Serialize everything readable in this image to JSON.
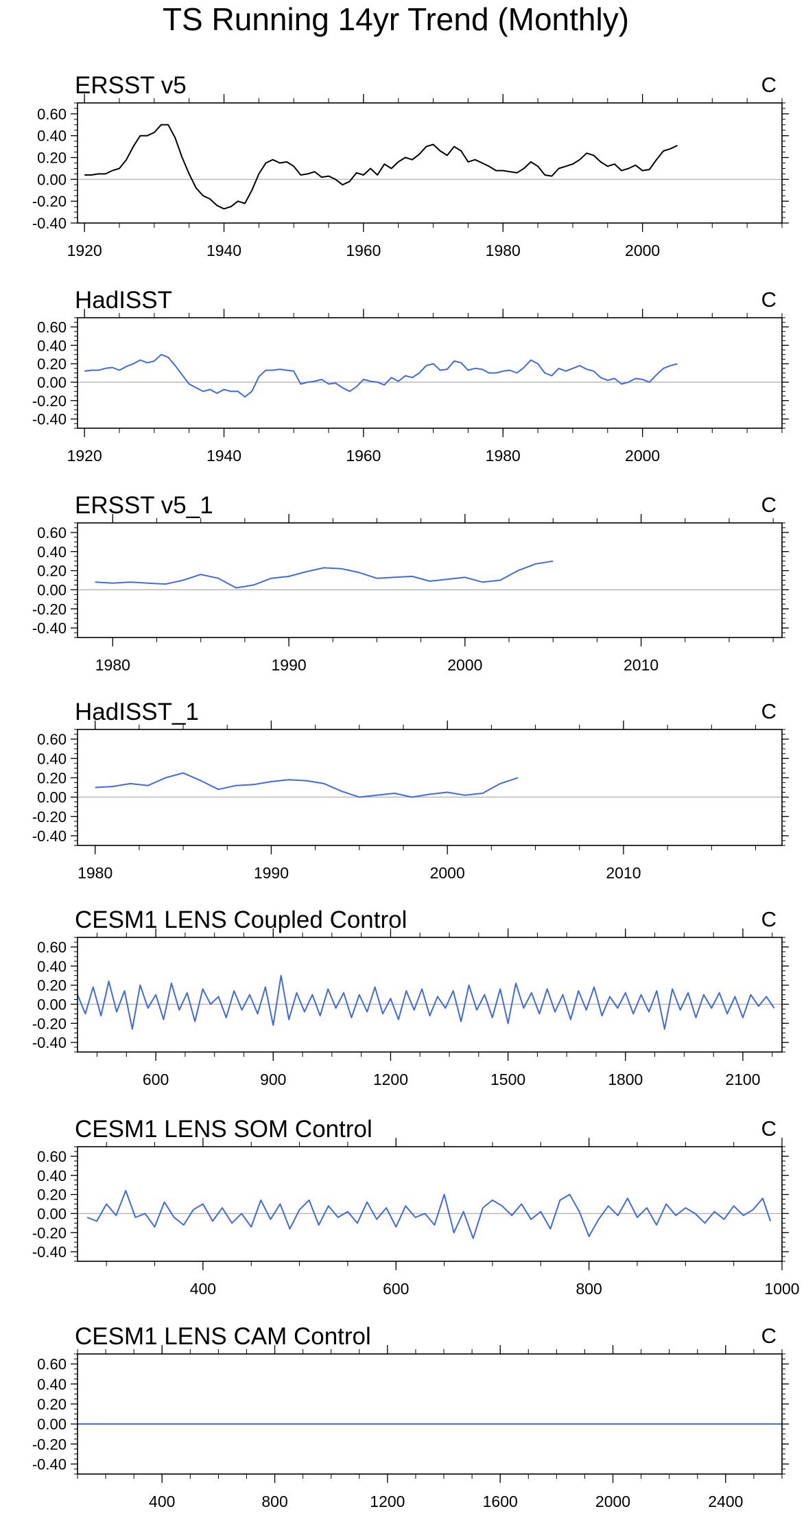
{
  "figure": {
    "title": "TS Running 14yr Trend (Monthly)"
  },
  "chart_data": [
    {
      "type": "line",
      "title": "ERSST v5",
      "units": "C",
      "xlim": [
        1919,
        2020
      ],
      "ylim": [
        -0.4,
        0.7
      ],
      "xticks": [
        1920,
        1940,
        1960,
        1980,
        2000
      ],
      "yticks": [
        -0.4,
        -0.2,
        0.0,
        0.2,
        0.4,
        0.6
      ],
      "ytick_labels": [
        "-0.40",
        "-0.20",
        "0.00",
        "0.20",
        "0.40",
        "0.60"
      ],
      "zero_line": true,
      "color": "#000000",
      "series": [
        {
          "x": [
            1920,
            1921,
            1922,
            1923,
            1924,
            1925,
            1926,
            1927,
            1928,
            1929,
            1930,
            1931,
            1932,
            1933,
            1934,
            1935,
            1936,
            1937,
            1938,
            1939,
            1940,
            1941,
            1942,
            1943,
            1944,
            1945,
            1946,
            1947,
            1948,
            1949,
            1950,
            1951,
            1952,
            1953,
            1954,
            1955,
            1956,
            1957,
            1958,
            1959,
            1960,
            1961,
            1962,
            1963,
            1964,
            1965,
            1966,
            1967,
            1968,
            1969,
            1970,
            1971,
            1972,
            1973,
            1974,
            1975,
            1976,
            1977,
            1978,
            1979,
            1980,
            1981,
            1982,
            1983,
            1984,
            1985,
            1986,
            1987,
            1988,
            1989,
            1990,
            1991,
            1992,
            1993,
            1994,
            1995,
            1996,
            1997,
            1998,
            1999,
            2000,
            2001,
            2002,
            2003,
            2004,
            2005
          ],
          "y": [
            0.04,
            0.04,
            0.05,
            0.05,
            0.08,
            0.1,
            0.18,
            0.3,
            0.4,
            0.4,
            0.43,
            0.5,
            0.5,
            0.38,
            0.2,
            0.05,
            -0.08,
            -0.15,
            -0.18,
            -0.24,
            -0.27,
            -0.25,
            -0.2,
            -0.22,
            -0.1,
            0.05,
            0.15,
            0.18,
            0.15,
            0.16,
            0.12,
            0.04,
            0.05,
            0.07,
            0.02,
            0.03,
            0.0,
            -0.05,
            -0.02,
            0.06,
            0.04,
            0.1,
            0.04,
            0.14,
            0.1,
            0.16,
            0.2,
            0.18,
            0.23,
            0.3,
            0.32,
            0.26,
            0.22,
            0.3,
            0.26,
            0.16,
            0.18,
            0.15,
            0.12,
            0.08,
            0.08,
            0.07,
            0.06,
            0.1,
            0.16,
            0.12,
            0.04,
            0.03,
            0.1,
            0.12,
            0.14,
            0.18,
            0.24,
            0.22,
            0.16,
            0.12,
            0.14,
            0.08,
            0.1,
            0.13,
            0.08,
            0.09,
            0.18,
            0.26,
            0.28,
            0.31
          ]
        }
      ]
    },
    {
      "type": "line",
      "title": "HadISST",
      "units": "C",
      "xlim": [
        1919,
        2020
      ],
      "ylim": [
        -0.5,
        0.7
      ],
      "xticks": [
        1920,
        1940,
        1960,
        1980,
        2000
      ],
      "yticks": [
        -0.4,
        -0.2,
        0.0,
        0.2,
        0.4,
        0.6
      ],
      "ytick_labels": [
        "-0.40",
        "-0.20",
        "0.00",
        "0.20",
        "0.40",
        "0.60"
      ],
      "zero_line": true,
      "color": "#4169e1",
      "series": [
        {
          "x": [
            1920,
            1921,
            1922,
            1923,
            1924,
            1925,
            1926,
            1927,
            1928,
            1929,
            1930,
            1931,
            1932,
            1933,
            1934,
            1935,
            1936,
            1937,
            1938,
            1939,
            1940,
            1941,
            1942,
            1943,
            1944,
            1945,
            1946,
            1947,
            1948,
            1949,
            1950,
            1951,
            1952,
            1953,
            1954,
            1955,
            1956,
            1957,
            1958,
            1959,
            1960,
            1961,
            1962,
            1963,
            1964,
            1965,
            1966,
            1967,
            1968,
            1969,
            1970,
            1971,
            1972,
            1973,
            1974,
            1975,
            1976,
            1977,
            1978,
            1979,
            1980,
            1981,
            1982,
            1983,
            1984,
            1985,
            1986,
            1987,
            1988,
            1989,
            1990,
            1991,
            1992,
            1993,
            1994,
            1995,
            1996,
            1997,
            1998,
            1999,
            2000,
            2001,
            2002,
            2003,
            2004,
            2005
          ],
          "y": [
            0.12,
            0.13,
            0.13,
            0.15,
            0.16,
            0.13,
            0.17,
            0.2,
            0.24,
            0.21,
            0.23,
            0.3,
            0.27,
            0.18,
            0.08,
            -0.02,
            -0.06,
            -0.1,
            -0.08,
            -0.12,
            -0.08,
            -0.1,
            -0.1,
            -0.16,
            -0.1,
            0.06,
            0.13,
            0.13,
            0.14,
            0.13,
            0.12,
            -0.02,
            0.0,
            0.01,
            0.03,
            -0.02,
            -0.01,
            -0.06,
            -0.1,
            -0.05,
            0.03,
            0.01,
            0.0,
            -0.03,
            0.05,
            0.01,
            0.07,
            0.05,
            0.1,
            0.18,
            0.2,
            0.13,
            0.14,
            0.23,
            0.21,
            0.13,
            0.15,
            0.14,
            0.1,
            0.1,
            0.12,
            0.13,
            0.1,
            0.16,
            0.24,
            0.2,
            0.1,
            0.07,
            0.15,
            0.12,
            0.15,
            0.18,
            0.14,
            0.12,
            0.05,
            0.02,
            0.04,
            -0.02,
            0.0,
            0.04,
            0.03,
            0.0,
            0.08,
            0.15,
            0.18,
            0.2
          ]
        }
      ]
    },
    {
      "type": "line",
      "title": "ERSST v5_1",
      "units": "C",
      "xlim": [
        1978,
        2018
      ],
      "ylim": [
        -0.5,
        0.7
      ],
      "xticks": [
        1980,
        1990,
        2000,
        2010
      ],
      "yticks": [
        -0.4,
        -0.2,
        0.0,
        0.2,
        0.4,
        0.6
      ],
      "ytick_labels": [
        "-0.40",
        "-0.20",
        "0.00",
        "0.20",
        "0.40",
        "0.60"
      ],
      "zero_line": true,
      "color": "#4169e1",
      "series": [
        {
          "x": [
            1979,
            1980,
            1981,
            1982,
            1983,
            1984,
            1985,
            1986,
            1987,
            1988,
            1989,
            1990,
            1991,
            1992,
            1993,
            1994,
            1995,
            1996,
            1997,
            1998,
            1999,
            2000,
            2001,
            2002,
            2003,
            2004,
            2005
          ],
          "y": [
            0.08,
            0.07,
            0.08,
            0.07,
            0.06,
            0.1,
            0.16,
            0.12,
            0.02,
            0.05,
            0.12,
            0.14,
            0.19,
            0.23,
            0.22,
            0.18,
            0.12,
            0.13,
            0.14,
            0.09,
            0.11,
            0.13,
            0.08,
            0.1,
            0.2,
            0.27,
            0.3
          ]
        }
      ]
    },
    {
      "type": "line",
      "title": "HadISST_1",
      "units": "C",
      "xlim": [
        1979,
        2019
      ],
      "ylim": [
        -0.5,
        0.7
      ],
      "xticks": [
        1980,
        1990,
        2000,
        2010
      ],
      "yticks": [
        -0.4,
        -0.2,
        0.0,
        0.2,
        0.4,
        0.6
      ],
      "ytick_labels": [
        "-0.40",
        "-0.20",
        "0.00",
        "0.20",
        "0.40",
        "0.60"
      ],
      "zero_line": true,
      "color": "#4169e1",
      "series": [
        {
          "x": [
            1980,
            1981,
            1982,
            1983,
            1984,
            1985,
            1986,
            1987,
            1988,
            1989,
            1990,
            1991,
            1992,
            1993,
            1994,
            1995,
            1996,
            1997,
            1998,
            1999,
            2000,
            2001,
            2002,
            2003,
            2004
          ],
          "y": [
            0.1,
            0.11,
            0.14,
            0.12,
            0.2,
            0.25,
            0.17,
            0.08,
            0.12,
            0.13,
            0.16,
            0.18,
            0.17,
            0.14,
            0.06,
            0.0,
            0.02,
            0.04,
            0.0,
            0.03,
            0.05,
            0.02,
            0.04,
            0.14,
            0.2
          ]
        }
      ]
    },
    {
      "type": "line",
      "title": "CESM1 LENS Coupled Control",
      "units": "C",
      "xlim": [
        400,
        2200
      ],
      "ylim": [
        -0.5,
        0.7
      ],
      "xticks": [
        600,
        900,
        1200,
        1500,
        1800,
        2100
      ],
      "yticks": [
        -0.4,
        -0.2,
        0.0,
        0.2,
        0.4,
        0.6
      ],
      "ytick_labels": [
        "-0.40",
        "-0.20",
        "0.00",
        "0.20",
        "0.40",
        "0.60"
      ],
      "zero_line": true,
      "color": "#4169e1",
      "series": [
        {
          "x": [
            400,
            420,
            440,
            460,
            480,
            500,
            520,
            540,
            560,
            580,
            600,
            620,
            640,
            660,
            680,
            700,
            720,
            740,
            760,
            780,
            800,
            820,
            840,
            860,
            880,
            900,
            920,
            940,
            960,
            980,
            1000,
            1020,
            1040,
            1060,
            1080,
            1100,
            1120,
            1140,
            1160,
            1180,
            1200,
            1220,
            1240,
            1260,
            1280,
            1300,
            1320,
            1340,
            1360,
            1380,
            1400,
            1420,
            1440,
            1460,
            1480,
            1500,
            1520,
            1540,
            1560,
            1580,
            1600,
            1620,
            1640,
            1660,
            1680,
            1700,
            1720,
            1740,
            1760,
            1780,
            1800,
            1820,
            1840,
            1860,
            1880,
            1900,
            1920,
            1940,
            1960,
            1980,
            2000,
            2020,
            2040,
            2060,
            2080,
            2100,
            2120,
            2140,
            2160,
            2180
          ],
          "y": [
            0.1,
            -0.1,
            0.18,
            -0.12,
            0.24,
            -0.08,
            0.14,
            -0.26,
            0.2,
            -0.04,
            0.1,
            -0.16,
            0.22,
            -0.06,
            0.12,
            -0.18,
            0.16,
            0.0,
            0.08,
            -0.14,
            0.14,
            -0.06,
            0.1,
            -0.1,
            0.18,
            -0.22,
            0.3,
            -0.16,
            0.12,
            -0.08,
            0.1,
            -0.12,
            0.16,
            -0.04,
            0.12,
            -0.14,
            0.1,
            -0.08,
            0.18,
            -0.1,
            0.06,
            -0.16,
            0.14,
            -0.06,
            0.16,
            -0.12,
            0.08,
            -0.04,
            0.14,
            -0.18,
            0.2,
            -0.06,
            0.1,
            -0.14,
            0.16,
            -0.2,
            0.22,
            -0.04,
            0.12,
            -0.1,
            0.16,
            -0.08,
            0.1,
            -0.16,
            0.14,
            -0.06,
            0.18,
            -0.12,
            0.08,
            -0.04,
            0.12,
            -0.1,
            0.1,
            -0.08,
            0.14,
            -0.26,
            0.16,
            -0.06,
            0.12,
            -0.14,
            0.1,
            -0.04,
            0.12,
            -0.1,
            0.08,
            -0.14,
            0.1,
            -0.02,
            0.08,
            -0.04
          ]
        }
      ]
    },
    {
      "type": "line",
      "title": "CESM1 LENS SOM Control",
      "units": "C",
      "xlim": [
        270,
        1000
      ],
      "ylim": [
        -0.5,
        0.7
      ],
      "xticks": [
        400,
        600,
        800,
        1000
      ],
      "yticks": [
        -0.4,
        -0.2,
        0.0,
        0.2,
        0.4,
        0.6
      ],
      "ytick_labels": [
        "-0.40",
        "-0.20",
        "0.00",
        "0.20",
        "0.40",
        "0.60"
      ],
      "zero_line": true,
      "color": "#4169e1",
      "series": [
        {
          "x": [
            280,
            290,
            300,
            310,
            320,
            330,
            340,
            350,
            360,
            370,
            380,
            390,
            400,
            410,
            420,
            430,
            440,
            450,
            460,
            470,
            480,
            490,
            500,
            510,
            520,
            530,
            540,
            550,
            560,
            570,
            580,
            590,
            600,
            610,
            620,
            630,
            640,
            650,
            660,
            670,
            680,
            690,
            700,
            710,
            720,
            730,
            740,
            750,
            760,
            770,
            780,
            790,
            800,
            810,
            820,
            830,
            840,
            850,
            860,
            870,
            880,
            890,
            900,
            910,
            920,
            930,
            940,
            950,
            960,
            970,
            980,
            988
          ],
          "y": [
            -0.04,
            -0.08,
            0.1,
            -0.02,
            0.24,
            -0.04,
            0.0,
            -0.14,
            0.12,
            -0.04,
            -0.12,
            0.04,
            0.1,
            -0.08,
            0.06,
            -0.1,
            0.0,
            -0.14,
            0.14,
            -0.06,
            0.1,
            -0.16,
            0.04,
            0.14,
            -0.12,
            0.08,
            -0.04,
            0.02,
            -0.1,
            0.12,
            -0.06,
            0.06,
            -0.14,
            0.08,
            -0.04,
            0.0,
            -0.12,
            0.2,
            -0.2,
            0.02,
            -0.26,
            0.06,
            0.14,
            0.08,
            -0.02,
            0.1,
            -0.06,
            0.02,
            -0.16,
            0.14,
            0.2,
            0.02,
            -0.24,
            -0.06,
            0.08,
            -0.02,
            0.16,
            -0.04,
            0.06,
            -0.12,
            0.1,
            -0.02,
            0.06,
            0.0,
            -0.1,
            0.02,
            -0.06,
            0.08,
            -0.02,
            0.04,
            0.16,
            -0.08
          ]
        }
      ]
    },
    {
      "type": "line",
      "title": "CESM1 LENS CAM Control",
      "units": "C",
      "xlim": [
        100,
        2600
      ],
      "ylim": [
        -0.5,
        0.7
      ],
      "xticks": [
        400,
        800,
        1200,
        1600,
        2000,
        2400
      ],
      "yticks": [
        -0.4,
        -0.2,
        0.0,
        0.2,
        0.4,
        0.6
      ],
      "ytick_labels": [
        "-0.40",
        "-0.20",
        "0.00",
        "0.20",
        "0.40",
        "0.60"
      ],
      "zero_line": true,
      "color": "#4169e1",
      "series": [
        {
          "x": [
            100,
            2600
          ],
          "y": [
            0.0,
            0.0
          ]
        }
      ]
    }
  ]
}
